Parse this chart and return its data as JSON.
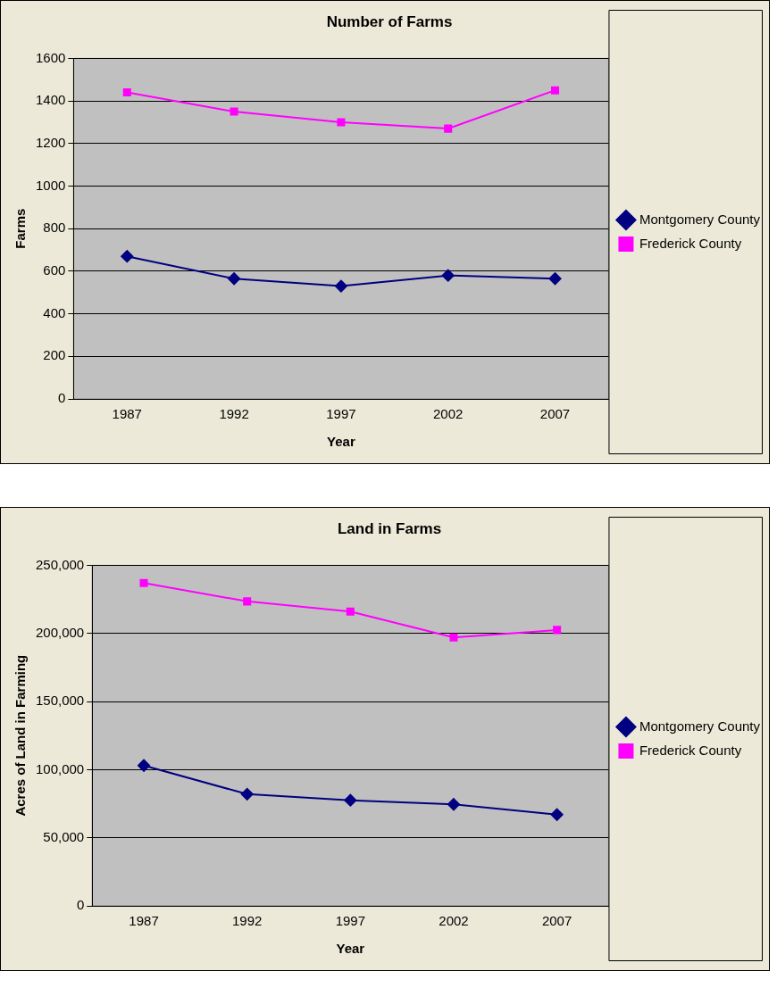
{
  "chart_data": [
    {
      "type": "line",
      "title": "Number of Farms",
      "xlabel": "Year",
      "ylabel": "Farms",
      "categories": [
        "1987",
        "1992",
        "1997",
        "2002",
        "2007"
      ],
      "series": [
        {
          "name": "Montgomery County",
          "color": "#000080",
          "marker": "diamond",
          "values": [
            670,
            565,
            530,
            580,
            565
          ]
        },
        {
          "name": "Frederick County",
          "color": "#ff00ff",
          "marker": "square",
          "values": [
            1440,
            1350,
            1300,
            1270,
            1450
          ]
        }
      ],
      "ylim": [
        0,
        1600
      ],
      "yticks": [
        0,
        200,
        400,
        600,
        800,
        1000,
        1200,
        1400,
        1600
      ],
      "grid": "y",
      "legend": "right"
    },
    {
      "type": "line",
      "title": "Land in Farms",
      "xlabel": "Year",
      "ylabel": "Acres of Land in Farming",
      "categories": [
        "1987",
        "1992",
        "1997",
        "2002",
        "2007"
      ],
      "series": [
        {
          "name": "Montgomery County",
          "color": "#000080",
          "marker": "diamond",
          "values": [
            103000,
            82000,
            77500,
            74500,
            67000
          ]
        },
        {
          "name": "Frederick County",
          "color": "#ff00ff",
          "marker": "square",
          "values": [
            237000,
            223500,
            216000,
            197000,
            202500
          ]
        }
      ],
      "ylim": [
        0,
        250000
      ],
      "yticks": [
        0,
        {
          "value": 50000,
          "label": "50,000"
        },
        {
          "value": 100000,
          "label": "100,000"
        },
        {
          "value": 150000,
          "label": "150,000"
        },
        {
          "value": 200000,
          "label": "200,000"
        },
        {
          "value": 250000,
          "label": "250,000"
        }
      ],
      "grid": "y",
      "legend": "right"
    }
  ]
}
